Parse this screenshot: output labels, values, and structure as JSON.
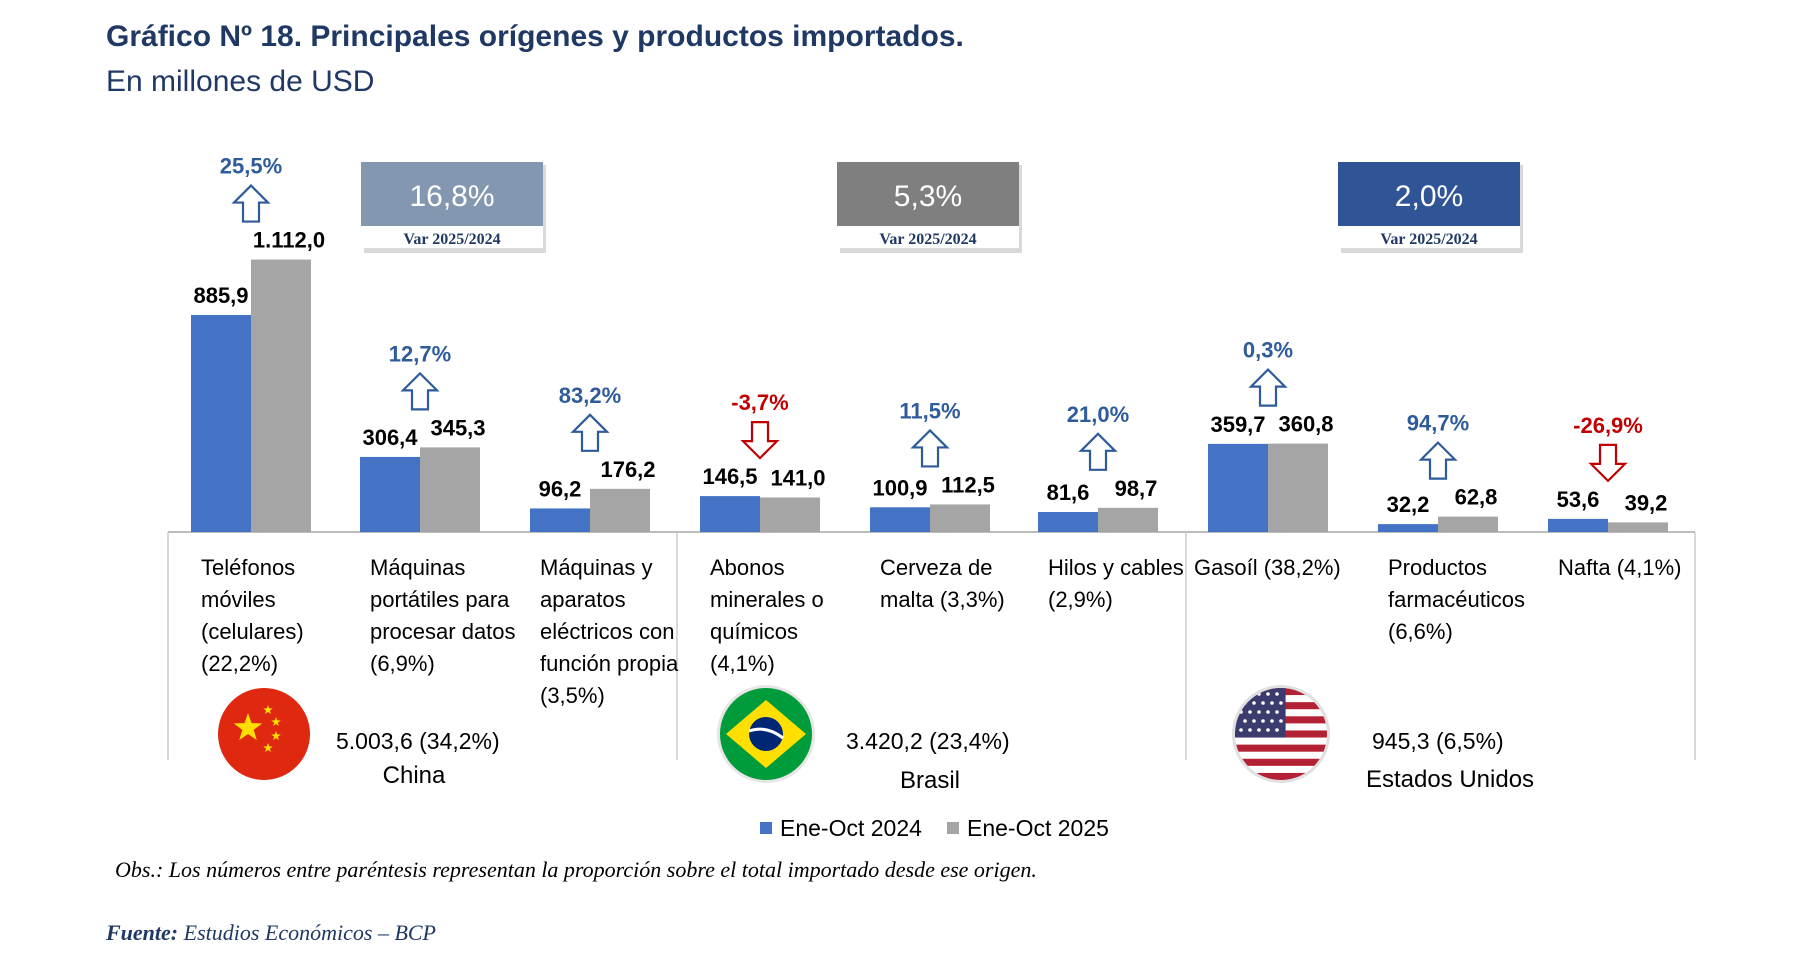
{
  "chart_data": {
    "type": "bar",
    "title": "Gráfico Nº 18. Principales orígenes y productos importados.",
    "subtitle": "En millones de USD",
    "series": [
      {
        "name": "Ene-Oct 2024",
        "color": "#4472c4"
      },
      {
        "name": "Ene-Oct 2025",
        "color": "#a5a5a5"
      }
    ],
    "groups": [
      {
        "country": "China",
        "summary": "5.003,6 (34,2%)",
        "box": {
          "pct": "16,8%",
          "var_label": "Var 2025/2024",
          "color": "#8497b0"
        },
        "flag": "china-flag",
        "products": [
          {
            "label": [
              "Teléfonos",
              "móviles",
              "(celulares)",
              "(22,2%)"
            ],
            "v2024": 885.9,
            "v2025": 1112.0,
            "l2024": "885,9",
            "l2025": "1.112,0",
            "var": "25,5%",
            "dir": "up"
          },
          {
            "label": [
              "Máquinas",
              "portátiles para",
              "procesar datos",
              "(6,9%)"
            ],
            "v2024": 306.4,
            "v2025": 345.3,
            "l2024": "306,4",
            "l2025": "345,3",
            "var": "12,7%",
            "dir": "up"
          },
          {
            "label": [
              "Máquinas y",
              "aparatos",
              "eléctricos con",
              "función propia",
              "(3,5%)"
            ],
            "v2024": 96.2,
            "v2025": 176.2,
            "l2024": "96,2",
            "l2025": "176,2",
            "var": "83,2%",
            "dir": "up"
          }
        ]
      },
      {
        "country": "Brasil",
        "summary": "3.420,2 (23,4%)",
        "box": {
          "pct": "5,3%",
          "var_label": "Var 2025/2024",
          "color": "#7f7f7f"
        },
        "flag": "brazil-flag",
        "products": [
          {
            "label": [
              "Abonos",
              "minerales o",
              "químicos",
              "(4,1%)"
            ],
            "v2024": 146.5,
            "v2025": 141.0,
            "l2024": "146,5",
            "l2025": "141,0",
            "var": "-3,7%",
            "dir": "down"
          },
          {
            "label": [
              "Cerveza de",
              "malta (3,3%)"
            ],
            "v2024": 100.9,
            "v2025": 112.5,
            "l2024": "100,9",
            "l2025": "112,5",
            "var": "11,5%",
            "dir": "up"
          },
          {
            "label": [
              "Hilos y cables",
              "(2,9%)"
            ],
            "v2024": 81.6,
            "v2025": 98.7,
            "l2024": "81,6",
            "l2025": "98,7",
            "var": "21,0%",
            "dir": "up"
          }
        ]
      },
      {
        "country": "Estados Unidos",
        "summary": "945,3 (6,5%)",
        "box": {
          "pct": "2,0%",
          "var_label": "Var 2025/2024",
          "color": "#2f5597"
        },
        "flag": "usa-flag",
        "products": [
          {
            "label": [
              "Gasoíl (38,2%)"
            ],
            "v2024": 359.7,
            "v2025": 360.8,
            "l2024": "359,7",
            "l2025": "360,8",
            "var": "0,3%",
            "dir": "up"
          },
          {
            "label": [
              "Productos",
              "farmacéuticos",
              "(6,6%)"
            ],
            "v2024": 32.2,
            "v2025": 62.8,
            "l2024": "32,2",
            "l2025": "62,8",
            "var": "94,7%",
            "dir": "up"
          },
          {
            "label": [
              "Nafta (4,1%)"
            ],
            "v2024": 53.6,
            "v2025": 39.2,
            "l2024": "53,6",
            "l2025": "39,2",
            "var": "-26,9%",
            "dir": "down"
          }
        ]
      }
    ],
    "ylim": [
      0,
      1200
    ],
    "note": "Obs.: Los números entre paréntesis representan la proporción sobre el total importado desde ese origen.",
    "source_label": "Fuente:",
    "source_text": "Estudios Económicos – BCP",
    "colors": {
      "up": "#2e5b9a",
      "down": "#c00000"
    }
  }
}
